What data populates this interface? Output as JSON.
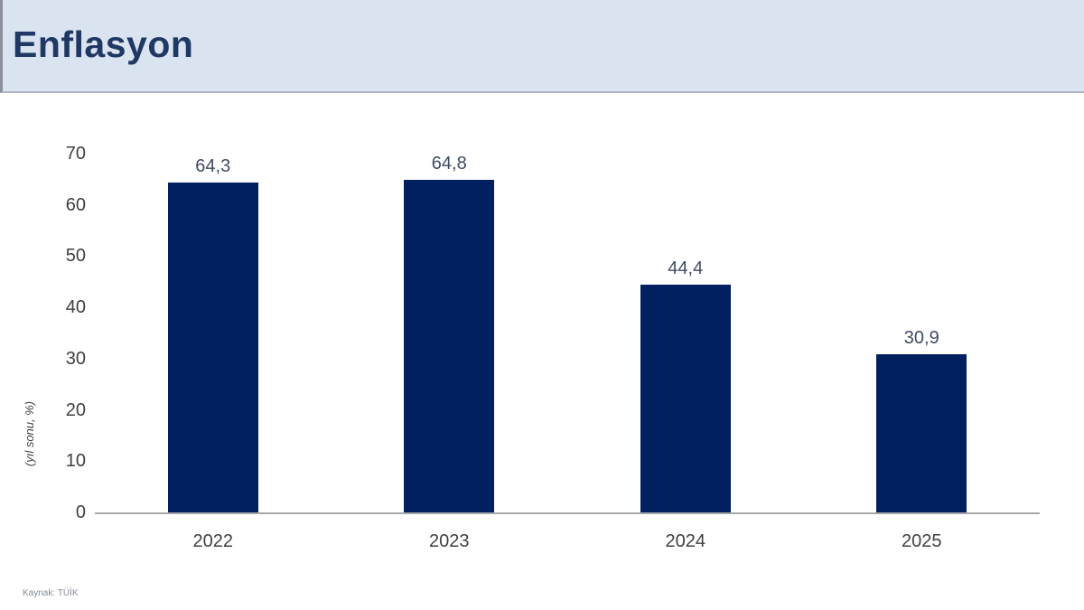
{
  "header": {
    "title": "Enflasyon"
  },
  "chart_data": {
    "type": "bar",
    "title": "Enflasyon",
    "categories": [
      "2022",
      "2023",
      "2024",
      "2025"
    ],
    "values": [
      64.3,
      64.8,
      44.4,
      30.9
    ],
    "value_labels": [
      "64,3",
      "64,8",
      "44,4",
      "30,9"
    ],
    "xlabel": "",
    "ylabel": "(yıl sonu, %)",
    "ylim": [
      0,
      70
    ],
    "yticks": [
      0,
      10,
      20,
      30,
      40,
      50,
      60,
      70
    ],
    "grid": false,
    "legend_position": "none",
    "bar_color": "#022060",
    "axis_line_color": "#a8a8a8"
  },
  "footer": {
    "source": "Kaynak: TÜİK"
  },
  "colors": {
    "header_background": "#dae3f0",
    "title_text": "#1f3864",
    "tick_text": "#404040",
    "value_label_text": "#414b63",
    "source_text": "#848b98"
  }
}
